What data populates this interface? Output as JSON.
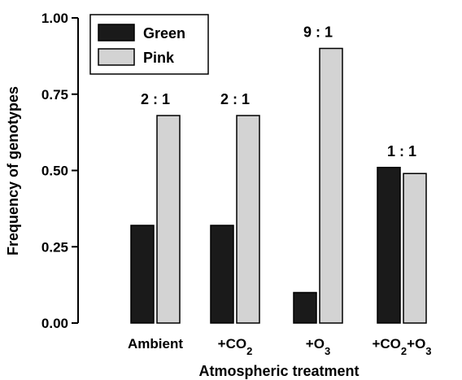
{
  "chart_data": {
    "type": "bar",
    "categories": [
      {
        "base": "Ambient",
        "sub": "",
        "tail": ""
      },
      {
        "base": "+CO",
        "sub": "2",
        "tail": ""
      },
      {
        "base": "+O",
        "sub": "3",
        "tail": ""
      },
      {
        "base": "+CO",
        "sub": "2",
        "tail": "+O",
        "sub2": "3"
      }
    ],
    "series": [
      {
        "name": "Green",
        "color": "#1a1a1a",
        "values": [
          0.32,
          0.32,
          0.1,
          0.51
        ]
      },
      {
        "name": "Pink",
        "color": "#d3d3d3",
        "values": [
          0.68,
          0.68,
          0.9,
          0.49
        ]
      }
    ],
    "ratios": [
      "2:1",
      "2:1",
      "9:1",
      "1:1"
    ],
    "xlabel": "Atmospheric treatment",
    "ylabel": "Frequency of genotypes",
    "ylim": [
      0,
      1.0
    ],
    "yticks": [
      "0.00",
      "0.25",
      "0.50",
      "0.75",
      "1.00"
    ],
    "legend_position": "top-left",
    "grid": false
  }
}
